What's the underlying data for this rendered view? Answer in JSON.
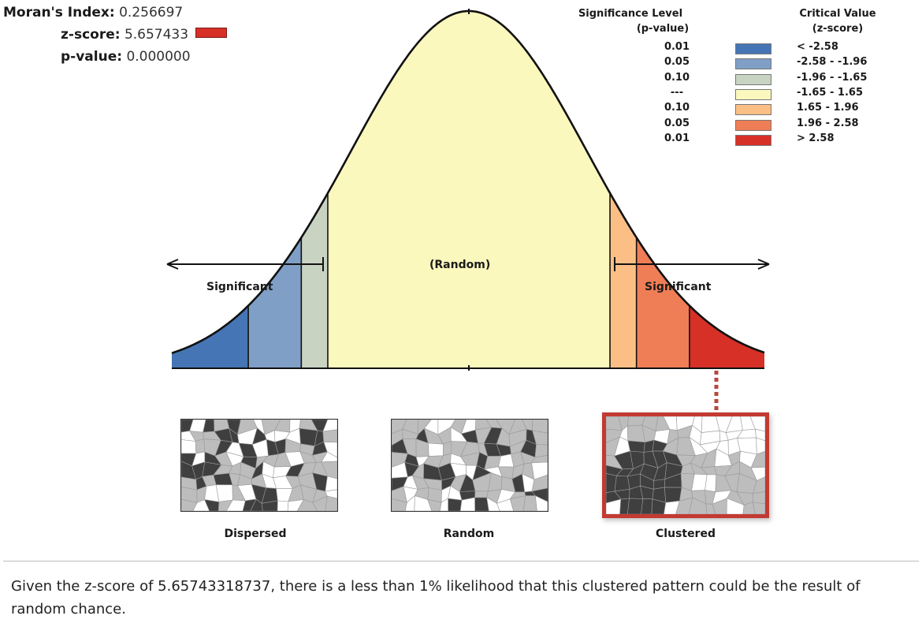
{
  "stats": {
    "moran_label": "Moran's Index:",
    "moran_value": "0.256697",
    "z_label": "z-score:",
    "z_value": "5.657433",
    "z_marker_color": "#d73027",
    "p_label": "p-value:",
    "p_value": "0.000000"
  },
  "legend": {
    "sig_header_line1": "Significance Level",
    "sig_header_line2": "(p-value)",
    "crit_header_line1": "Critical Value",
    "crit_header_line2": "(z-score)",
    "rows": [
      {
        "p": "0.01",
        "range": "< -2.58",
        "color": "#4575b4"
      },
      {
        "p": "0.05",
        "range": "-2.58 - -1.96",
        "color": "#7f9fc6"
      },
      {
        "p": "0.10",
        "range": "-1.96 - -1.65",
        "color": "#c9d3c2"
      },
      {
        "p": "---",
        "range": "-1.65 - 1.65",
        "color": "#fbf8bd"
      },
      {
        "p": "0.10",
        "range": "1.65 - 1.96",
        "color": "#fbbf85"
      },
      {
        "p": "0.05",
        "range": "1.96 - 2.58",
        "color": "#ef7e56"
      },
      {
        "p": "0.01",
        "range": "> 2.58",
        "color": "#d73027"
      }
    ]
  },
  "curve": {
    "region_label": "(Random)",
    "left_label": "Significant",
    "right_label": "Significant",
    "z_bounds": [
      -2.58,
      -1.96,
      -1.65,
      1.65,
      1.96,
      2.58
    ],
    "observed_z": 5.65743318737
  },
  "maps": [
    {
      "caption": "Dispersed",
      "pattern": "dispersed",
      "highlighted": false
    },
    {
      "caption": "Random",
      "pattern": "random",
      "highlighted": false
    },
    {
      "caption": "Clustered",
      "pattern": "clustered",
      "highlighted": true
    }
  ],
  "colors": {
    "dark_cell": "#3f3f3f",
    "light_cell": "#bdbdbd",
    "white_cell": "#ffffff",
    "highlight_border": "#c23a32"
  },
  "conclusion": "Given the z-score of 5.65743318737, there is a less than 1% likelihood that this clustered pattern could be the result of random chance."
}
